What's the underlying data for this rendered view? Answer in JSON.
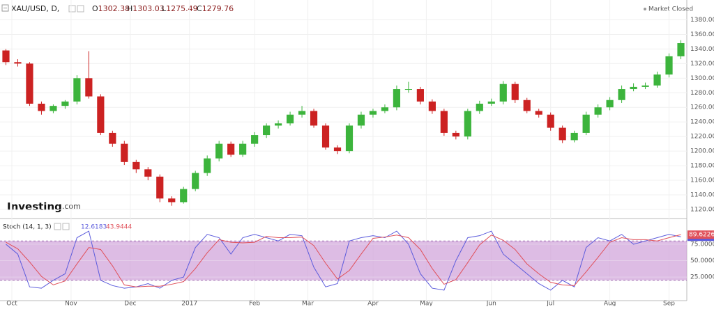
{
  "chart_data": [
    {
      "type": "candlestick",
      "title": "XAU/USD, D,",
      "status": "Market Closed",
      "watermark": "Investing",
      "watermark_suffix": ".com",
      "legend_values": [
        {
          "label": "O",
          "value": 1302.38
        },
        {
          "label": "H",
          "value": 1303.03
        },
        {
          "label": "L",
          "value": 1275.49
        },
        {
          "label": "C",
          "value": 1279.76
        }
      ],
      "up_color": "#3cb43c",
      "down_color": "#cc2222",
      "open": [
        1338,
        1322,
        1320,
        1265,
        1255,
        1262,
        1268,
        1300,
        1275,
        1225,
        1210,
        1185,
        1175,
        1165,
        1135,
        1130,
        1148,
        1170,
        1190,
        1210,
        1195,
        1210,
        1222,
        1235,
        1238,
        1250,
        1255,
        1235,
        1205,
        1200,
        1235,
        1250,
        1255,
        1260,
        1285,
        1285,
        1268,
        1255,
        1225,
        1220,
        1255,
        1265,
        1268,
        1292,
        1270,
        1255,
        1250,
        1232,
        1215,
        1225,
        1250,
        1260,
        1270,
        1285,
        1288,
        1290,
        1305,
        1330
      ],
      "high": [
        1340,
        1326,
        1322,
        1268,
        1264,
        1270,
        1304,
        1337,
        1278,
        1228,
        1214,
        1188,
        1178,
        1168,
        1138,
        1151,
        1173,
        1194,
        1214,
        1213,
        1214,
        1226,
        1238,
        1242,
        1254,
        1262,
        1258,
        1238,
        1208,
        1238,
        1254,
        1258,
        1264,
        1290,
        1295,
        1288,
        1271,
        1258,
        1228,
        1258,
        1269,
        1272,
        1296,
        1295,
        1273,
        1258,
        1253,
        1235,
        1228,
        1254,
        1264,
        1274,
        1290,
        1293,
        1294,
        1309,
        1334,
        1352
      ],
      "low": [
        1318,
        1316,
        1262,
        1250,
        1252,
        1258,
        1264,
        1272,
        1222,
        1206,
        1181,
        1170,
        1160,
        1130,
        1125,
        1128,
        1145,
        1166,
        1186,
        1192,
        1192,
        1206,
        1218,
        1231,
        1235,
        1246,
        1232,
        1202,
        1196,
        1197,
        1231,
        1246,
        1252,
        1256,
        1280,
        1264,
        1251,
        1221,
        1216,
        1216,
        1251,
        1262,
        1264,
        1266,
        1252,
        1246,
        1228,
        1211,
        1212,
        1222,
        1246,
        1256,
        1266,
        1282,
        1285,
        1287,
        1301,
        1326
      ],
      "close": [
        1322,
        1320,
        1265,
        1255,
        1262,
        1268,
        1300,
        1275,
        1225,
        1210,
        1185,
        1175,
        1165,
        1135,
        1130,
        1148,
        1170,
        1190,
        1210,
        1195,
        1210,
        1222,
        1235,
        1238,
        1250,
        1255,
        1235,
        1205,
        1200,
        1235,
        1250,
        1255,
        1260,
        1285,
        1285,
        1268,
        1255,
        1225,
        1220,
        1255,
        1265,
        1268,
        1292,
        1270,
        1255,
        1250,
        1232,
        1215,
        1225,
        1250,
        1260,
        1270,
        1285,
        1288,
        1290,
        1305,
        1330,
        1348
      ],
      "xlim": [
        -0.5,
        57.5
      ],
      "xticks": [
        {
          "value": 0.5,
          "label": "Oct"
        },
        {
          "value": 5.5,
          "label": "Nov"
        },
        {
          "value": 10.5,
          "label": "Dec"
        },
        {
          "value": 15.5,
          "label": "2017"
        },
        {
          "value": 21,
          "label": "Feb"
        },
        {
          "value": 25.5,
          "label": "Mar"
        },
        {
          "value": 31,
          "label": "Apr"
        },
        {
          "value": 35.5,
          "label": "May"
        },
        {
          "value": 41,
          "label": "Jun"
        },
        {
          "value": 46,
          "label": "Jul"
        },
        {
          "value": 51,
          "label": "Aug"
        },
        {
          "value": 56,
          "label": "Sep"
        }
      ],
      "ylim": [
        1108.5,
        1386.2
      ],
      "yticks": [
        {
          "value": 1120,
          "label": "1120.00"
        },
        {
          "value": 1140,
          "label": "1140.00"
        },
        {
          "value": 1160,
          "label": "1160.00"
        },
        {
          "value": 1180,
          "label": "1180.00"
        },
        {
          "value": 1200,
          "label": "1200.00"
        },
        {
          "value": 1220,
          "label": "1220.00"
        },
        {
          "value": 1240,
          "label": "1240.00"
        },
        {
          "value": 1260,
          "label": "1260.00"
        },
        {
          "value": 1280,
          "label": "1280.00"
        },
        {
          "value": 1300,
          "label": "1300.00"
        },
        {
          "value": 1320,
          "label": "1320.00"
        },
        {
          "value": 1340,
          "label": "1340.00"
        },
        {
          "value": 1360,
          "label": "1360.00"
        },
        {
          "value": 1380,
          "label": "1380.00"
        }
      ],
      "grid": true
    },
    {
      "type": "line",
      "title": "Stoch (14, 1, 3)",
      "legend_values": [
        12.6183,
        43.9444
      ],
      "series": [
        {
          "color": "#5b5bdc",
          "values": [
            75,
            60,
            10,
            8,
            20,
            30,
            85,
            95,
            20,
            12,
            8,
            10,
            15,
            8,
            20,
            25,
            70,
            90,
            85,
            60,
            85,
            90,
            85,
            80,
            90,
            88,
            40,
            10,
            15,
            80,
            85,
            88,
            85,
            95,
            75,
            30,
            8,
            5,
            50,
            85,
            88,
            95,
            60,
            45,
            30,
            15,
            5,
            20,
            10,
            70,
            85,
            80,
            90,
            75,
            80,
            85,
            90,
            86.3069
          ]
        },
        {
          "color": "#e0505a",
          "values": [
            78,
            68,
            48,
            26,
            13,
            19,
            45,
            70,
            67,
            42,
            13,
            10,
            11,
            11,
            14,
            18,
            38,
            62,
            82,
            78,
            77,
            78,
            87,
            85,
            85,
            86,
            73,
            46,
            22,
            35,
            60,
            84,
            86,
            89,
            85,
            67,
            38,
            14,
            21,
            47,
            74,
            89,
            81,
            67,
            45,
            30,
            17,
            13,
            12,
            33,
            55,
            78,
            85,
            82,
            82,
            80,
            85,
            89.6226
          ]
        }
      ],
      "band": [
        20,
        80
      ],
      "band_color": "#cfa0d8",
      "ylim": [
        -11,
        111
      ],
      "yticks": [
        {
          "value": 25,
          "label": "25.0000"
        },
        {
          "value": 50,
          "label": "50.0000"
        },
        {
          "value": 75,
          "label": "75.0000"
        }
      ],
      "grid": true
    }
  ]
}
